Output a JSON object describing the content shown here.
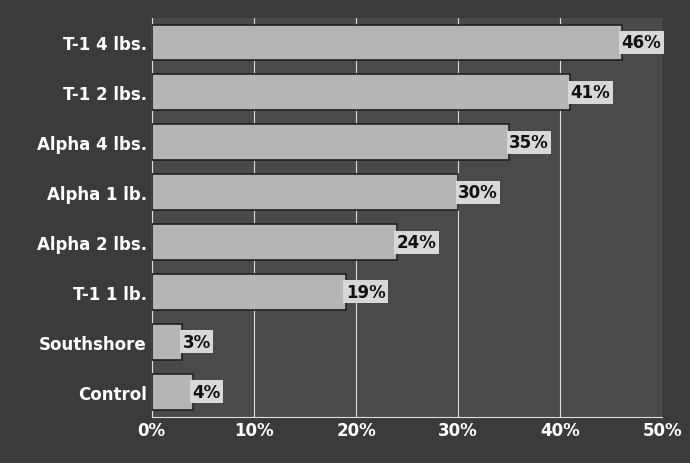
{
  "chart_data": {
    "type": "bar",
    "orientation": "horizontal",
    "categories": [
      "T-1 4 lbs.",
      "T-1 2 lbs.",
      "Alpha 4 lbs.",
      "Alpha 1 lb.",
      "Alpha 2 lbs.",
      "T-1 1 lb.",
      "Southshore",
      "Control"
    ],
    "values": [
      46,
      41,
      35,
      30,
      24,
      19,
      3,
      4
    ],
    "value_labels": [
      "46%",
      "41%",
      "35%",
      "30%",
      "24%",
      "19%",
      "3%",
      "4%"
    ],
    "data_labels": true,
    "color": "#b5b5b5",
    "xlim": [
      0,
      50
    ],
    "xticks": [
      {
        "value": 0,
        "label": "0%"
      },
      {
        "value": 10,
        "label": "10%"
      },
      {
        "value": 20,
        "label": "20%"
      },
      {
        "value": 30,
        "label": "30%"
      },
      {
        "value": 40,
        "label": "40%"
      },
      {
        "value": 50,
        "label": "50%"
      }
    ],
    "grid": true
  }
}
